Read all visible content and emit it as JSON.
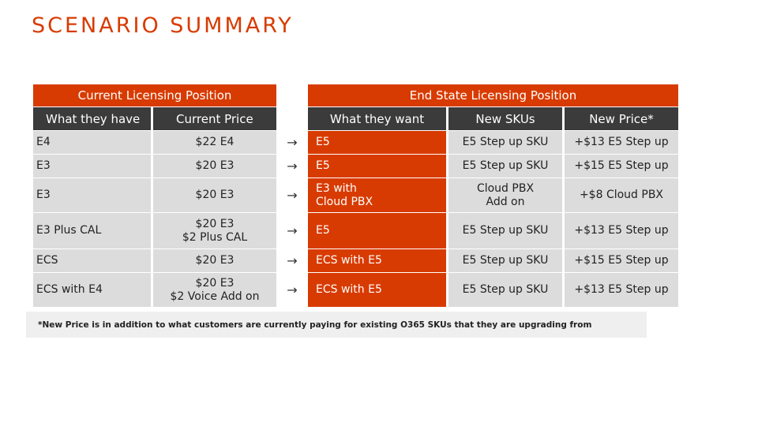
{
  "title": "SCENARIO SUMMARY",
  "header": {
    "current": "Current Licensing Position",
    "end_state": "End State Licensing Position"
  },
  "columns": {
    "have": "What they have",
    "current_price": "Current Price",
    "want": "What they want",
    "new_skus": "New SKUs",
    "new_price": "New Price*"
  },
  "arrow": "→",
  "rows": [
    {
      "have": "E4",
      "price": "$22 E4",
      "want": "E5",
      "sku": "E5 Step up SKU",
      "new_price": "+$13 E5 Step up"
    },
    {
      "have": "E3",
      "price": "$20 E3",
      "want": "E5",
      "sku": "E5 Step up SKU",
      "new_price": "+$15 E5 Step up"
    },
    {
      "have": "E3",
      "price": "$20 E3",
      "want": "E3 with\nCloud PBX",
      "sku": "Cloud PBX\nAdd on",
      "new_price": "+$8 Cloud PBX"
    },
    {
      "have": "E3 Plus CAL",
      "price": "$20 E3\n$2 Plus CAL",
      "want": "E5",
      "sku": "E5 Step up SKU",
      "new_price": "+$13 E5 Step up"
    },
    {
      "have": "ECS",
      "price": "$20 E3",
      "want": "ECS with E5",
      "sku": "E5 Step up SKU",
      "new_price": "+$15 E5 Step up"
    },
    {
      "have": "ECS with E4",
      "price": "$20 E3\n$2 Voice Add on",
      "want": "ECS with E5",
      "sku": "E5 Step up SKU",
      "new_price": "+$13 E5 Step up"
    }
  ],
  "footnote": "*New Price is in addition to what customers are currently paying for existing O365 SKUs that they are upgrading from",
  "colors": {
    "accent": "#d83b01",
    "header_dark": "#3b3b3b",
    "cell_gray": "#dcdcdc"
  }
}
